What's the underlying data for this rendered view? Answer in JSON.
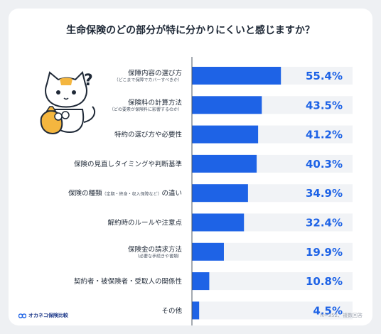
{
  "chart_data": {
    "type": "bar",
    "orientation": "horizontal",
    "title": "生命保険のどの部分が特に分かりにくいと感じますか？",
    "categories": [
      {
        "label": "保障内容の選び方",
        "note": "（どこまで保障でカバーすべきか）"
      },
      {
        "label": "保険料の計算方法",
        "note": "（どの要素が保険料に影響するのか）"
      },
      {
        "label": "特約の選び方や必要性",
        "note": ""
      },
      {
        "label": "保険の見直しタイミングや判断基準",
        "note": ""
      },
      {
        "label": "保険の種類",
        "inline_note": "（定期・終身・収入保障など）",
        "label_after": "の違い"
      },
      {
        "label": "解約時のルールや注意点",
        "note": ""
      },
      {
        "label": "保険金の請求方法",
        "note": "（必要な手続きや書類）"
      },
      {
        "label": "契約者・被保険者・受取人の関係性",
        "note": ""
      },
      {
        "label": "その他",
        "note": ""
      }
    ],
    "values": [
      55.4,
      43.5,
      41.2,
      40.3,
      34.9,
      32.4,
      19.9,
      10.8,
      4.5
    ],
    "value_labels": [
      "55.4%",
      "43.5%",
      "41.2%",
      "40.3%",
      "34.9%",
      "32.4%",
      "19.9%",
      "10.8%",
      "4.5%"
    ],
    "xlim": [
      0,
      100
    ],
    "unit": "%",
    "legend": "none",
    "grid": false
  },
  "footer": {
    "brand": "オカネコ保険比較",
    "note": "N=352、複数回答"
  },
  "colors": {
    "bar": "#1e63e6",
    "track": "#f1f3f6",
    "value_text": "#1e63e6",
    "background": "#eef0f3",
    "card": "#ffffff"
  },
  "icons": {
    "mascot": "cat-mascot-with-question-mark",
    "brand": "okaneco-logo-icon"
  }
}
